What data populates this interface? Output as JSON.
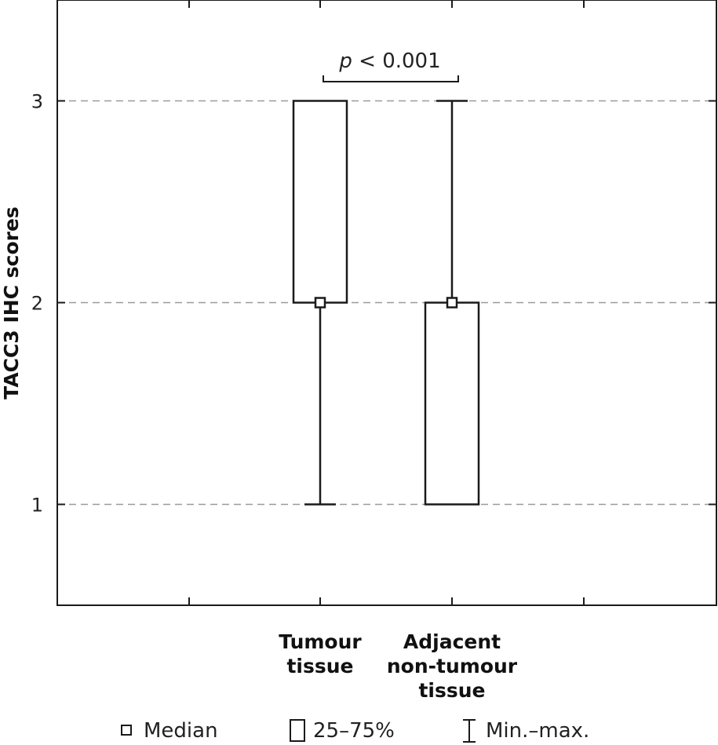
{
  "chart_data": {
    "type": "box",
    "ylabel": "TACC3 IHC scores",
    "xlabel": "",
    "ylim": [
      0.5,
      3.5
    ],
    "yticks": [
      "1",
      "2",
      "3"
    ],
    "grid": "horizontal dashed at y ticks",
    "categories": [
      {
        "lines": [
          "Tumour",
          "tissue"
        ]
      },
      {
        "lines": [
          "Adjacent",
          "non-tumour",
          "tissue"
        ]
      }
    ],
    "boxes": [
      {
        "category": "Tumour tissue",
        "min": 1,
        "q1": 2,
        "median": 2,
        "q3": 3,
        "max": 3
      },
      {
        "category": "Adjacent non-tumour tissue",
        "min": 1,
        "q1": 1,
        "median": 2,
        "q3": 2,
        "max": 3
      }
    ],
    "annotation": {
      "p_italic": "p",
      "rest": " < 0.001"
    },
    "legend": {
      "placement": "bottom",
      "items": [
        {
          "symbol": "median-square",
          "label": "Median"
        },
        {
          "symbol": "box",
          "label": "25–75%"
        },
        {
          "symbol": "whisker",
          "label": "Min.–max."
        }
      ]
    },
    "colors": {
      "stroke": "#1a1a1a",
      "grid": "#9a9a9a",
      "background": "#ffffff"
    }
  }
}
